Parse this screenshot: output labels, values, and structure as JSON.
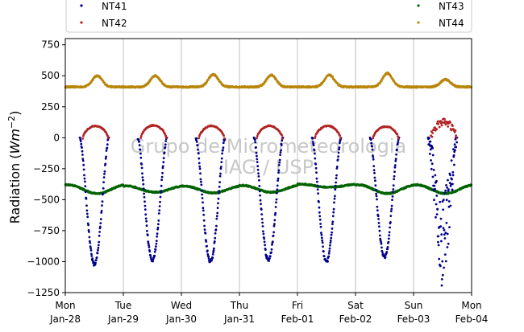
{
  "chart_data": {
    "type": "scatter",
    "ylabel_prefix": "Radiation (",
    "ylabel_unit_main": "Wm",
    "ylabel_unit_exp": "−2",
    "ylabel_suffix": ")",
    "ylim": [
      -1250,
      800
    ],
    "yticks": [
      {
        "value": -1250,
        "label": "−1250"
      },
      {
        "value": -1000,
        "label": "−1000"
      },
      {
        "value": -750,
        "label": "−750"
      },
      {
        "value": -500,
        "label": "−500"
      },
      {
        "value": -250,
        "label": "−250"
      },
      {
        "value": 0,
        "label": "0"
      },
      {
        "value": 250,
        "label": "250"
      },
      {
        "value": 500,
        "label": "500"
      },
      {
        "value": 750,
        "label": "750"
      }
    ],
    "xlim": [
      "2019-01-28",
      "2019-02-04"
    ],
    "xticks": [
      {
        "day": "Mon",
        "date": "Jan-28"
      },
      {
        "day": "Tue",
        "date": "Jan-29"
      },
      {
        "day": "Wed",
        "date": "Jan-30"
      },
      {
        "day": "Thu",
        "date": "Jan-31"
      },
      {
        "day": "Fri",
        "date": "Feb-01"
      },
      {
        "day": "Sat",
        "date": "Feb-02"
      },
      {
        "day": "Sun",
        "date": "Feb-03"
      },
      {
        "day": "Mon",
        "date": "Feb-04"
      }
    ],
    "grid": "vertical",
    "legend_placement": "top",
    "watermark": [
      "Grupo de Micrometeorologia",
      "IAG / USP"
    ],
    "series": [
      {
        "name": "NT41",
        "color": "#00008b",
        "daily_min": [
          -1020,
          -985,
          -1000,
          -990,
          -1000,
          -960,
          -1200
        ]
      },
      {
        "name": "NT42",
        "color": "#b22222",
        "daily_max": [
          100,
          105,
          100,
          100,
          100,
          95,
          130
        ]
      },
      {
        "name": "NT43",
        "color": "#006400",
        "daily_range": [
          [
            -450,
            -380
          ],
          [
            -440,
            -390
          ],
          [
            -445,
            -390
          ],
          [
            -440,
            -385
          ],
          [
            -400,
            -375
          ],
          [
            -450,
            -380
          ],
          [
            -450,
            -380
          ]
        ]
      },
      {
        "name": "NT44",
        "color": "#b8860b",
        "daily_peak": [
          500,
          500,
          510,
          505,
          505,
          520,
          470
        ],
        "baseline": 410
      }
    ]
  }
}
